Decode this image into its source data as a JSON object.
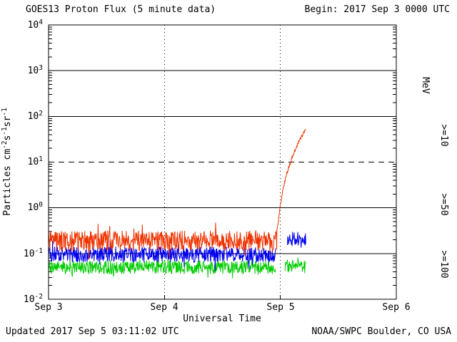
{
  "header": {
    "title": "GOES13 Proton Flux (5 minute data)",
    "begin": "Begin: 2017 Sep 3 0000 UTC"
  },
  "footer": {
    "updated": "Updated 2017 Sep  5 03:11:02 UTC",
    "credit": "NOAA/SWPC Boulder, CO USA"
  },
  "chart_data": {
    "type": "line",
    "title": "GOES13 Proton Flux (5 minute data)",
    "xlabel": "Universal Time",
    "ylabel": "Particles cm-2 s-1 sr-1",
    "ylabel_parts": [
      {
        "text": "Particles cm",
        "sup": false
      },
      {
        "text": "-2",
        "sup": true
      },
      {
        "text": "s",
        "sup": false
      },
      {
        "text": "-1",
        "sup": true
      },
      {
        "text": "sr",
        "sup": false
      },
      {
        "text": "-1",
        "sup": true
      }
    ],
    "x_range_days": [
      0,
      3
    ],
    "ylim_log": [
      -2,
      4
    ],
    "x_ticks": [
      {
        "label": "Sep 3",
        "day": 0
      },
      {
        "label": "Sep 4",
        "day": 1
      },
      {
        "label": "Sep 5",
        "day": 2
      },
      {
        "label": "Sep 6",
        "day": 3
      }
    ],
    "y_ticks": [
      {
        "base": "10",
        "exp": "4",
        "log": 4
      },
      {
        "base": "10",
        "exp": "3",
        "log": 3
      },
      {
        "base": "10",
        "exp": "2",
        "log": 2
      },
      {
        "base": "10",
        "exp": "1",
        "log": 1
      },
      {
        "base": "10",
        "exp": "0",
        "log": 0
      },
      {
        "base": "10",
        "exp": "-1",
        "log": -1
      },
      {
        "base": "10",
        "exp": "-2",
        "log": -2
      }
    ],
    "grid": {
      "solid_decades": [
        3,
        2,
        0,
        -1
      ],
      "dashed_decades": [
        1
      ],
      "vertical_dotted_days": [
        1,
        2
      ]
    },
    "right_axis": {
      "unit": "MeV",
      "series_labels": [
        {
          "text": ">=10",
          "color": "#ee3300"
        },
        {
          "text": ">=50",
          "color": "#0000ee"
        },
        {
          "text": ">=100",
          "color": "#00cc00"
        }
      ]
    },
    "sample_interval_days": 0.003472,
    "series": [
      {
        "name": ">=10 MeV",
        "color": "#ee3300",
        "segments": [
          {
            "type": "noise",
            "start": 0,
            "end": 1.97,
            "base_log": -0.72,
            "noise_log": 0.22,
            "spike_prob": 0.07,
            "spike_log": 0.3
          },
          {
            "type": "curve",
            "noise_log": 0.04,
            "points_log": [
              [
                1.97,
                -0.5
              ],
              [
                2.0,
                0.05
              ],
              [
                2.03,
                0.5
              ],
              [
                2.06,
                0.8
              ],
              [
                2.1,
                1.1
              ],
              [
                2.14,
                1.35
              ],
              [
                2.18,
                1.55
              ],
              [
                2.21,
                1.67
              ],
              [
                2.22,
                1.7
              ]
            ]
          }
        ]
      },
      {
        "name": ">=50 MeV",
        "color": "#0000ee",
        "segments": [
          {
            "type": "noise",
            "start": 0,
            "end": 1.96,
            "base_log": -1.02,
            "noise_log": 0.17,
            "spike_prob": 0.05,
            "spike_log": 0.25
          },
          {
            "type": "noise",
            "gap_before": true,
            "start": 2.06,
            "end": 2.22,
            "base_log": -0.68,
            "noise_log": 0.16,
            "spike_prob": 0.06,
            "spike_log": 0.2
          }
        ]
      },
      {
        "name": ">=100 MeV",
        "color": "#00cc00",
        "segments": [
          {
            "type": "noise",
            "start": 0,
            "end": 1.96,
            "base_log": -1.3,
            "noise_log": 0.15,
            "spike_prob": 0.06,
            "spike_log": 0.2
          },
          {
            "type": "noise",
            "gap_before": true,
            "start": 2.04,
            "end": 2.22,
            "base_log": -1.28,
            "noise_log": 0.15,
            "spike_prob": 0.06,
            "spike_log": 0.2
          }
        ]
      }
    ]
  }
}
